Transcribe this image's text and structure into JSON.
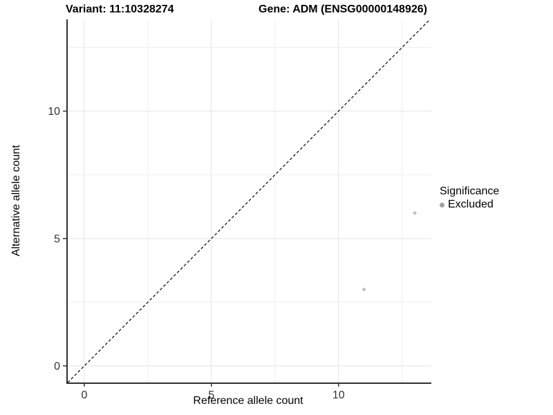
{
  "titles": {
    "variant": "Variant: 11:10328274",
    "gene": "Gene: ADM (ENSG00000148926)"
  },
  "axes": {
    "x_label": "Reference allele count",
    "y_label": "Alternative allele count"
  },
  "legend": {
    "title": "Significance",
    "items": [
      {
        "label": "Excluded",
        "color": "#a0a0a0"
      }
    ]
  },
  "colors": {
    "background": "#ffffff",
    "axis_line": "#2f2f2f",
    "tick": "#333333",
    "tick_label": "#333333",
    "grid_major": "#e3e3e3",
    "grid_minor": "#efefef",
    "point": "#c3c3c3",
    "identity_line": "#000000"
  },
  "chart_data": {
    "type": "scatter",
    "title": "Variant: 11:10328274 — Gene: ADM (ENSG00000148926)",
    "xlabel": "Reference allele count",
    "ylabel": "Alternative allele count",
    "xlim": [
      -0.65,
      13.65
    ],
    "ylim": [
      -0.65,
      13.6
    ],
    "x_ticks": [
      0,
      5,
      10
    ],
    "y_ticks": [
      0,
      5,
      10
    ],
    "x_minor_ticks": [
      2.5,
      7.5,
      12.5
    ],
    "y_minor_ticks": [
      2.5,
      7.5,
      12.5
    ],
    "grid": true,
    "legend_position": "right",
    "series": [
      {
        "name": "Excluded",
        "color": "#c3c3c3",
        "point_radius": 2.5,
        "points": [
          [
            11,
            3
          ],
          [
            13,
            6
          ]
        ]
      }
    ],
    "reference_line": {
      "type": "identity",
      "slope": 1,
      "intercept": 0,
      "style": "dashed",
      "color": "#000000"
    }
  }
}
